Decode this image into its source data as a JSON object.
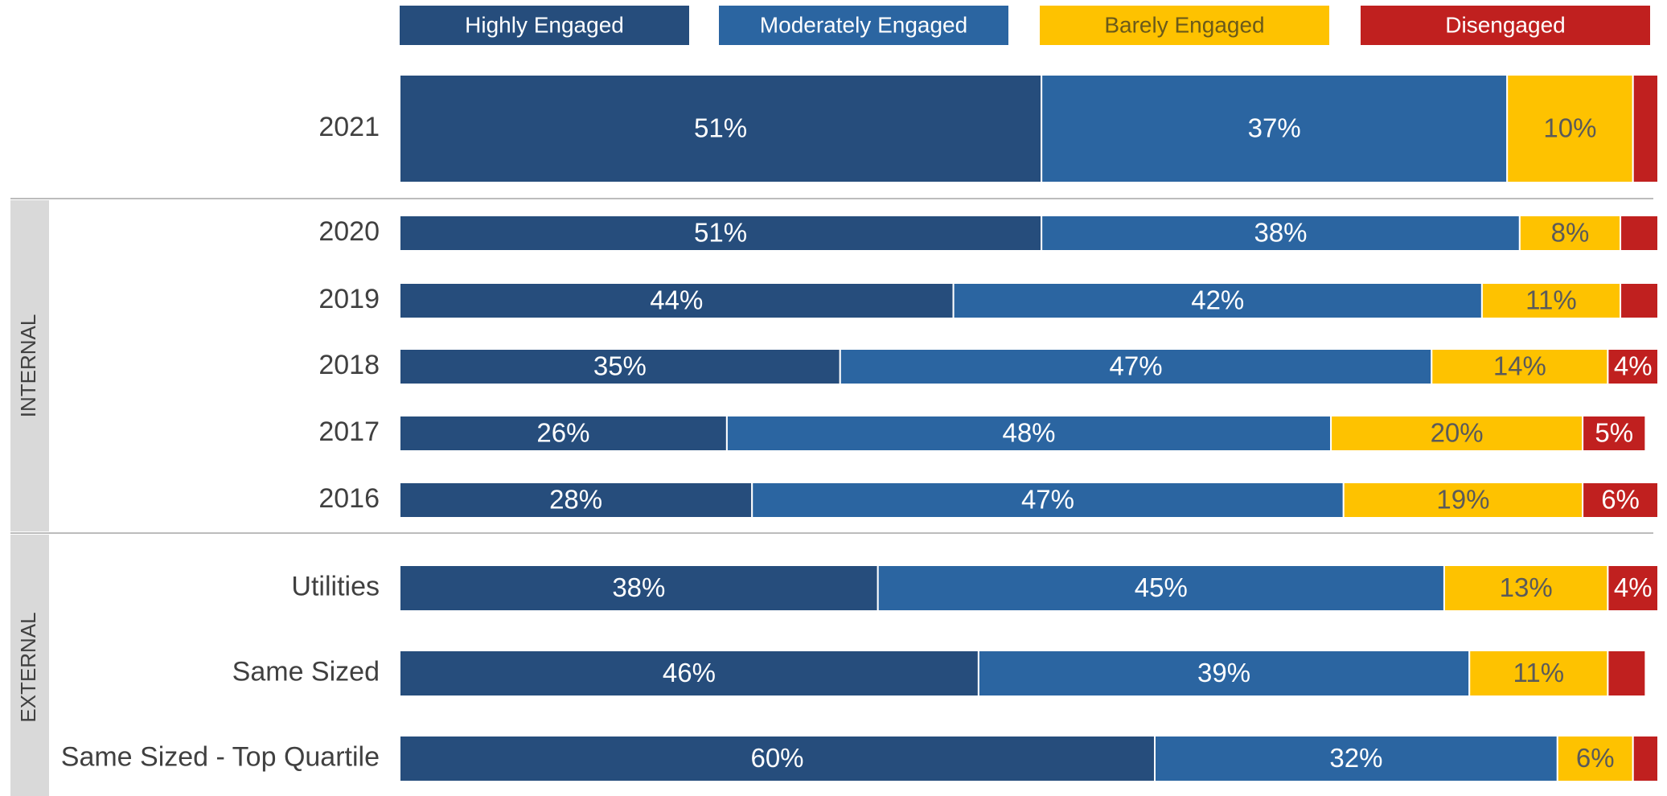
{
  "chart_data": {
    "type": "stacked-bar-horizontal",
    "categories": [
      "2021",
      "2020",
      "2019",
      "2018",
      "2017",
      "2016",
      "Utilities",
      "Same Sized",
      "Same Sized - Top Quartile"
    ],
    "annotations": [
      "INTERNAL",
      "EXTERNAL"
    ],
    "xlim": [
      0,
      100
    ],
    "series": [
      {
        "name": "Highly Engaged",
        "color": "#264d7c",
        "values": [
          51,
          51,
          44,
          35,
          26,
          28,
          38,
          46,
          60
        ],
        "value_labels": [
          "51%",
          "51%",
          "44%",
          "35%",
          "26%",
          "28%",
          "38%",
          "46%",
          "60%"
        ]
      },
      {
        "name": "Moderately Engaged",
        "color": "#2b65a1",
        "values": [
          37,
          38,
          42,
          47,
          48,
          47,
          45,
          39,
          32
        ],
        "value_labels": [
          "37%",
          "38%",
          "42%",
          "47%",
          "48%",
          "47%",
          "45%",
          "39%",
          "32%"
        ]
      },
      {
        "name": "Barely Engaged",
        "color": "#fec200",
        "values": [
          10,
          8,
          11,
          14,
          20,
          19,
          13,
          11,
          6
        ],
        "value_labels": [
          "10%",
          "8%",
          "11%",
          "14%",
          "20%",
          "19%",
          "13%",
          "11%",
          "6%"
        ]
      },
      {
        "name": "Disengaged",
        "color": "#c0201f",
        "values": [
          2,
          3,
          3,
          4,
          5,
          6,
          4,
          3,
          2
        ],
        "value_labels": [
          null,
          null,
          null,
          "4%",
          "5%",
          "6%",
          "4%",
          null,
          null
        ]
      }
    ]
  }
}
